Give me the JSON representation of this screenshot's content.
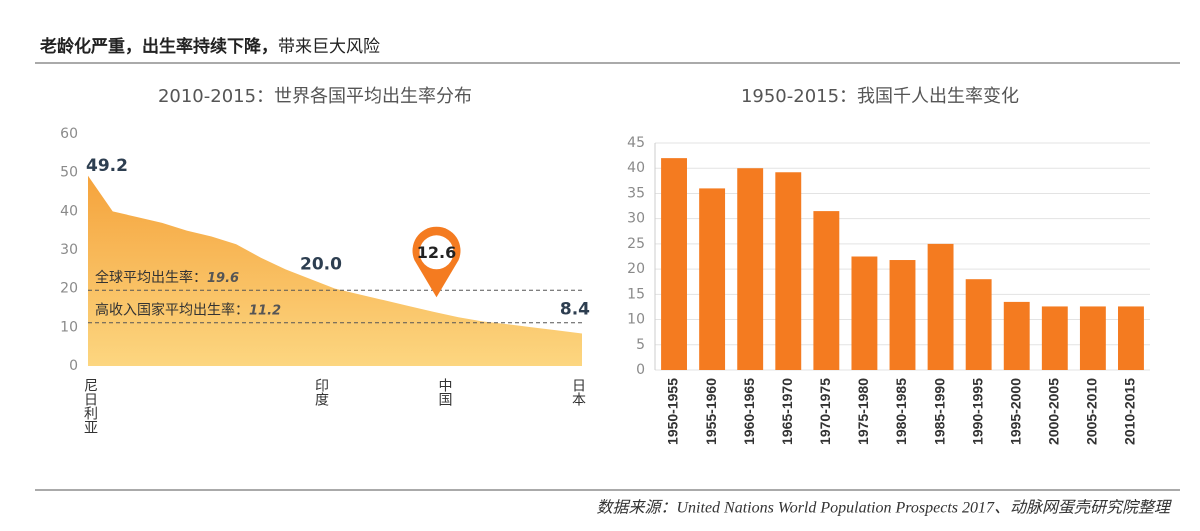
{
  "header": {
    "title_bold": "老龄化严重，出生率持续下降，",
    "title_rest": "带来巨大风险"
  },
  "chart_data": [
    {
      "type": "area",
      "title": "2010-2015：世界各国平均出生率分布",
      "categories": [
        "尼日利亚",
        null,
        null,
        null,
        null,
        null,
        null,
        null,
        null,
        null,
        "印度",
        null,
        null,
        null,
        null,
        "中国",
        null,
        null,
        null,
        null,
        "日本"
      ],
      "values": [
        49.2,
        40,
        38.5,
        37,
        35,
        33.5,
        31.5,
        28,
        25,
        22.5,
        20,
        18.5,
        17,
        15.5,
        14,
        12.6,
        11.5,
        10.8,
        10,
        9.2,
        8.4
      ],
      "value_labels": [
        "49.2",
        null,
        null,
        null,
        null,
        null,
        null,
        null,
        null,
        null,
        "20.0",
        null,
        null,
        null,
        null,
        "12.6",
        null,
        null,
        null,
        null,
        "8.4"
      ],
      "color": "#f5a33c",
      "ylim": [
        0,
        60
      ],
      "yticks": [
        0,
        10,
        20,
        30,
        40,
        50,
        60
      ],
      "reference_lines": [
        {
          "label": "全球平均出生率：",
          "value": 19.6
        },
        {
          "label": "高收入国家平均出生率：",
          "value": 11.2
        }
      ]
    },
    {
      "type": "bar",
      "title": "1950-2015：我国千人出生率变化",
      "categories": [
        "1950-1955",
        "1955-1960",
        "1960-1965",
        "1965-1970",
        "1970-1975",
        "1975-1980",
        "1980-1985",
        "1985-1990",
        "1990-1995",
        "1995-2000",
        "2000-2005",
        "2005-2010",
        "2010-2015"
      ],
      "values": [
        42,
        36,
        40,
        39.2,
        31.5,
        22.5,
        21.8,
        25,
        18,
        13.5,
        12.6,
        12.6,
        12.6
      ],
      "color": "#f47b20",
      "ylim": [
        0,
        45
      ],
      "yticks": [
        0,
        5,
        10,
        15,
        20,
        25,
        30,
        35,
        40,
        45
      ],
      "grid": true
    }
  ],
  "footer": {
    "source": "数据来源：United Nations World Population Prospects 2017、动脉网蛋壳研究院整理"
  }
}
